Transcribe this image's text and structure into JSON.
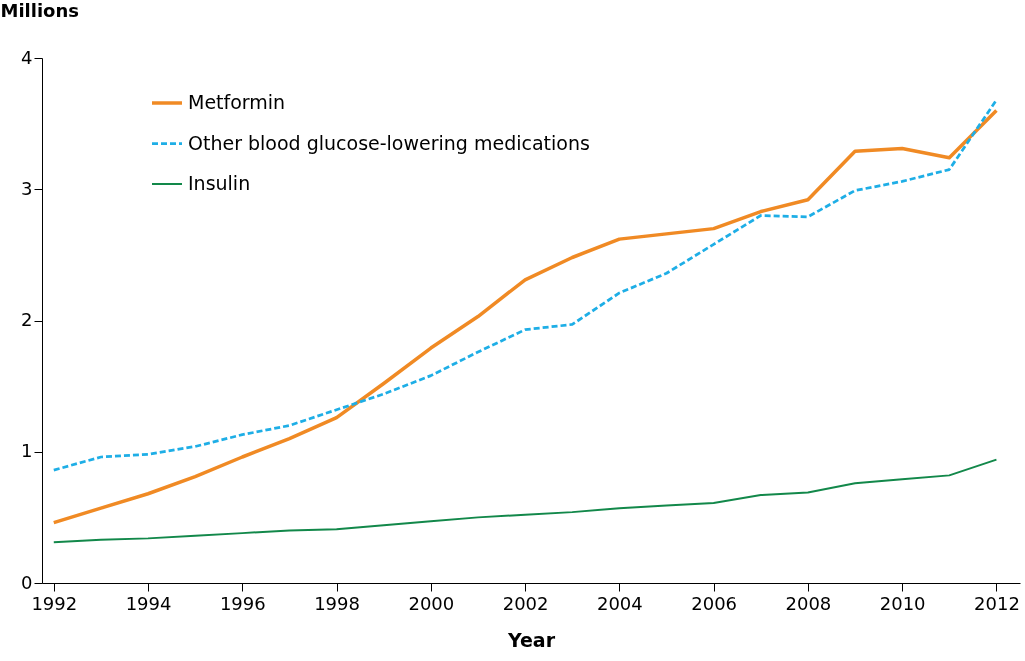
{
  "chart_data": {
    "type": "line",
    "xlabel": "Year",
    "ylabel": "Millions",
    "x": [
      1992,
      1993,
      1994,
      1995,
      1996,
      1997,
      1998,
      1999,
      2000,
      2001,
      2002,
      2003,
      2004,
      2005,
      2006,
      2007,
      2008,
      2009,
      2010,
      2011,
      2012
    ],
    "series": [
      {
        "name": "Metformin",
        "color": "#f08a24",
        "line_style": "solid",
        "values": [
          0.46,
          0.57,
          0.68,
          0.81,
          0.96,
          1.1,
          1.26,
          1.52,
          1.79,
          2.03,
          2.31,
          2.48,
          2.62,
          2.66,
          2.7,
          2.83,
          2.92,
          3.29,
          3.31,
          3.24,
          3.6
        ]
      },
      {
        "name": "Other blood glucose-lowering medications",
        "color": "#1eaee6",
        "line_style": "dashed",
        "values": [
          0.86,
          0.96,
          0.98,
          1.04,
          1.13,
          1.2,
          1.32,
          1.44,
          1.58,
          1.76,
          1.93,
          1.97,
          2.21,
          2.36,
          2.58,
          2.8,
          2.79,
          2.99,
          3.06,
          3.15,
          3.68
        ]
      },
      {
        "name": "Insulin",
        "color": "#12884a",
        "line_style": "solid",
        "values": [
          0.31,
          0.33,
          0.34,
          0.36,
          0.38,
          0.4,
          0.41,
          0.44,
          0.47,
          0.5,
          0.52,
          0.54,
          0.57,
          0.59,
          0.61,
          0.67,
          0.69,
          0.76,
          0.79,
          0.82,
          0.94
        ]
      }
    ],
    "xlim": [
      1991.75,
      2012.5
    ],
    "xticks": [
      1992,
      1994,
      1996,
      1998,
      2000,
      2002,
      2004,
      2006,
      2008,
      2010,
      2012
    ],
    "ylim": [
      0,
      4
    ],
    "yticks": [
      0,
      1,
      2,
      3,
      4
    ],
    "grid": false,
    "legend": "top left"
  }
}
